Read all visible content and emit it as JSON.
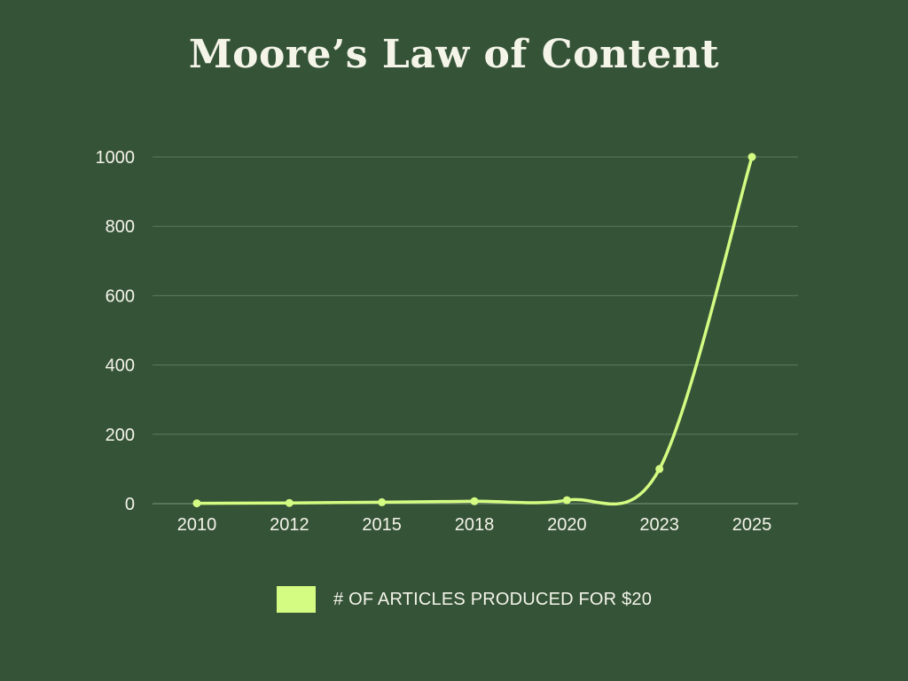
{
  "chart_data": {
    "type": "line",
    "title": "Moore’s Law of Content",
    "categories": [
      "2010",
      "2012",
      "2015",
      "2018",
      "2020",
      "2023",
      "2025"
    ],
    "series": [
      {
        "name": "# OF ARTICLES PRODUCED FOR $20",
        "values": [
          1,
          2,
          4,
          7,
          10,
          100,
          1000
        ]
      }
    ],
    "yticks": [
      "0",
      "200",
      "400",
      "600",
      "800",
      "1000"
    ],
    "ylim": [
      0,
      1000
    ],
    "xlabel": "",
    "ylabel": "",
    "grid": true,
    "legend_position": "bottom-center",
    "colors": {
      "background": "#355337",
      "line": "#d4fb82",
      "grid": "#5c7a5c",
      "text": "#f4f4e9"
    }
  }
}
